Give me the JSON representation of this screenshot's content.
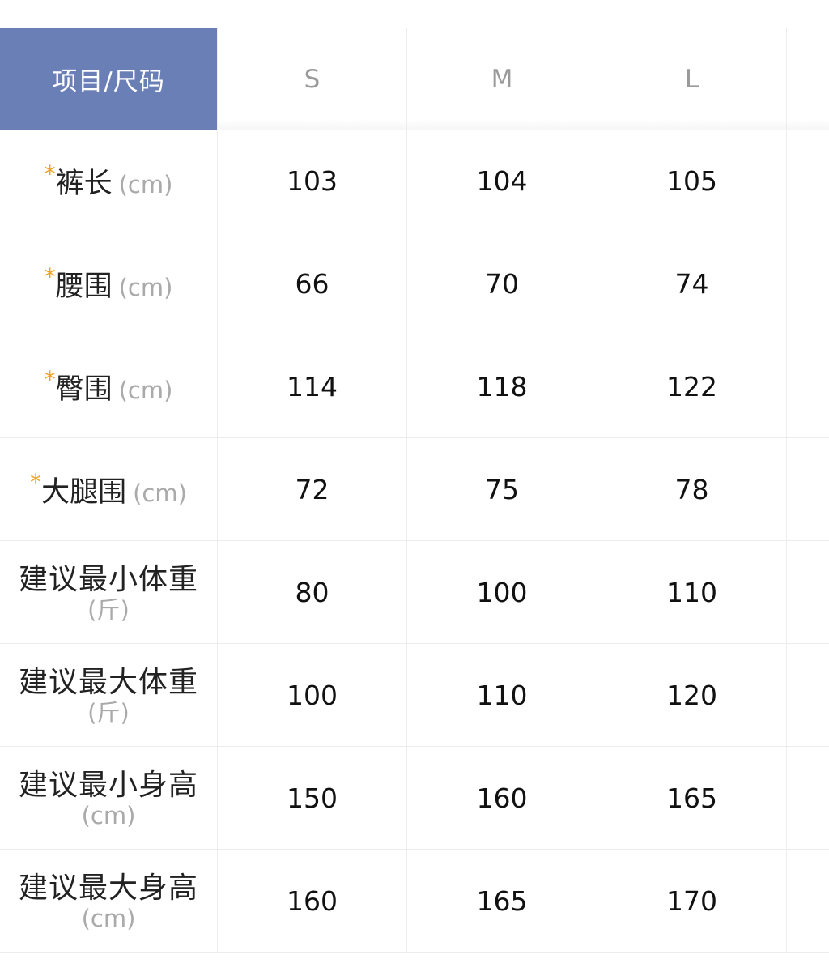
{
  "header": {
    "corner": "项目/尺码",
    "sizes": [
      "S",
      "M",
      "L"
    ]
  },
  "colors": {
    "header_bg": "#6a7fb6",
    "asterisk": "#f0a020"
  },
  "rows": [
    {
      "required": "*",
      "label": "裤长",
      "unit": "(cm)",
      "values": [
        "103",
        "104",
        "105"
      ]
    },
    {
      "required": "*",
      "label": "腰围",
      "unit": "(cm)",
      "values": [
        "66",
        "70",
        "74"
      ]
    },
    {
      "required": "*",
      "label": "臀围",
      "unit": "(cm)",
      "values": [
        "114",
        "118",
        "122"
      ]
    },
    {
      "required": "*",
      "label": "大腿围",
      "unit": "(cm)",
      "values": [
        "72",
        "75",
        "78"
      ]
    },
    {
      "label": "建议最小体重",
      "unit": "(斤)",
      "values": [
        "80",
        "100",
        "110"
      ]
    },
    {
      "label": "建议最大体重",
      "unit": "(斤)",
      "values": [
        "100",
        "110",
        "120"
      ]
    },
    {
      "label": "建议最小身高",
      "unit": "(cm)",
      "values": [
        "150",
        "160",
        "165"
      ]
    },
    {
      "label": "建议最大身高",
      "unit": "(cm)",
      "values": [
        "160",
        "165",
        "170"
      ]
    }
  ]
}
